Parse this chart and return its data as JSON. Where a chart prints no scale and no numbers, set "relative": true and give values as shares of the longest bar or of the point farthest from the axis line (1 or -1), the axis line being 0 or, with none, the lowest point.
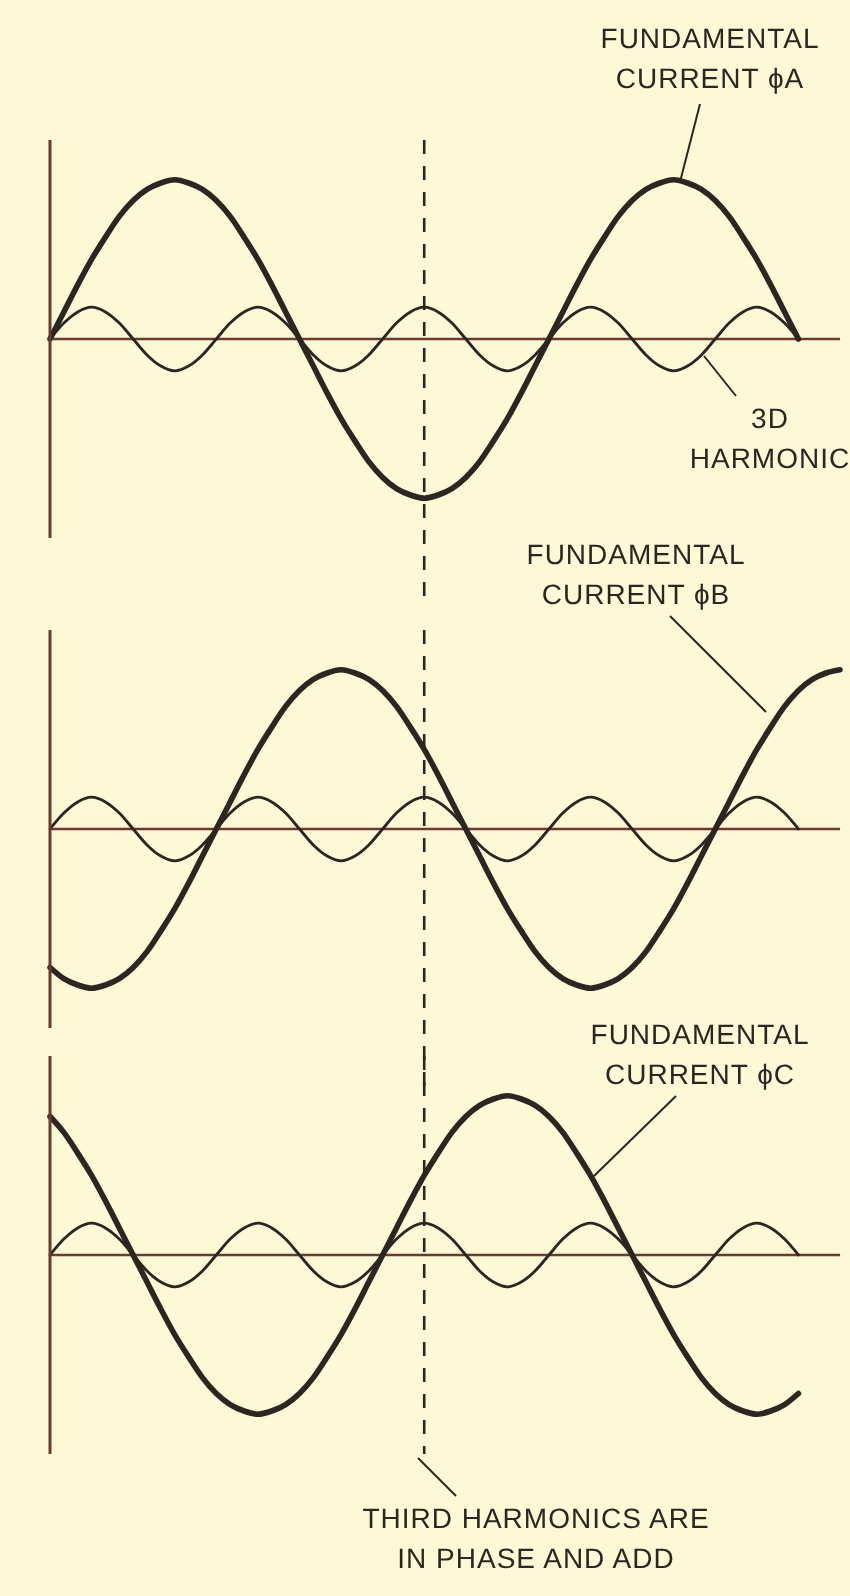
{
  "chart_data": [
    {
      "type": "line",
      "relative": true,
      "line_style": "solid",
      "categories": [
        null,
        null,
        null,
        null,
        null,
        null,
        null,
        null,
        null,
        null,
        null,
        null,
        null,
        null,
        null,
        null,
        null,
        null,
        null,
        null,
        null,
        null,
        null,
        null,
        null,
        null,
        null,
        null,
        null,
        null,
        null,
        null,
        null,
        null,
        null,
        null,
        null,
        null,
        null,
        null,
        null,
        null,
        null,
        null,
        null,
        null,
        null,
        null,
        null,
        null,
        null,
        null,
        null,
        null,
        null,
        null,
        null,
        null
      ],
      "series": [
        {
          "color": "#2b2622",
          "values": [
            0,
            0.17,
            0.34,
            0.5,
            0.64,
            0.77,
            0.87,
            0.94,
            0.98,
            1,
            0.98,
            0.94,
            0.87,
            0.77,
            0.64,
            0.5,
            0.34,
            0.17,
            0,
            -0.17,
            -0.34,
            -0.5,
            -0.64,
            -0.77,
            -0.87,
            -0.94,
            -0.98,
            -1,
            -0.98,
            -0.94,
            -0.87,
            -0.77,
            -0.64,
            -0.5,
            -0.34,
            -0.17,
            0,
            0.17,
            0.34,
            0.5,
            0.64,
            0.77,
            0.87,
            0.94,
            0.98,
            1,
            0.98,
            0.94,
            0.87,
            0.77,
            0.64,
            0.5,
            0.34,
            0.17,
            0,
            null,
            null,
            null
          ]
        },
        {
          "color": "#2b2622",
          "values": [
            0,
            0.1,
            0.17,
            0.2,
            0.17,
            0.1,
            0,
            -0.1,
            -0.17,
            -0.2,
            -0.17,
            -0.1,
            0,
            0.1,
            0.17,
            0.2,
            0.17,
            0.1,
            0,
            -0.1,
            -0.17,
            -0.2,
            -0.17,
            -0.1,
            0,
            0.1,
            0.17,
            0.2,
            0.17,
            0.1,
            0,
            -0.1,
            -0.17,
            -0.2,
            -0.17,
            -0.1,
            0,
            0.1,
            0.17,
            0.2,
            0.17,
            0.1,
            0,
            -0.1,
            -0.17,
            -0.2,
            -0.17,
            -0.1,
            0,
            0.1,
            0.17,
            0.2,
            0.17,
            0.1,
            0,
            null,
            null,
            null
          ]
        }
      ],
      "annotations": [
        "FUNDAMENTAL CURRENT ϕA",
        "3D HARMONIC"
      ],
      "ref_lines": [
        {
          "axis": "y",
          "value": 0,
          "color": "#6b3a30"
        }
      ]
    },
    {
      "type": "line",
      "relative": true,
      "line_style": "solid",
      "categories": [
        null,
        null,
        null,
        null,
        null,
        null,
        null,
        null,
        null,
        null,
        null,
        null,
        null,
        null,
        null,
        null,
        null,
        null,
        null,
        null,
        null,
        null,
        null,
        null,
        null,
        null,
        null,
        null,
        null,
        null,
        null,
        null,
        null,
        null,
        null,
        null,
        null,
        null,
        null,
        null,
        null,
        null,
        null,
        null,
        null,
        null,
        null,
        null,
        null,
        null,
        null,
        null,
        null,
        null,
        null,
        null,
        null,
        null
      ],
      "series": [
        {
          "color": "#2b2622",
          "values": [
            -0.87,
            -0.94,
            -0.98,
            -1,
            -0.98,
            -0.94,
            -0.87,
            -0.77,
            -0.64,
            -0.5,
            -0.34,
            -0.17,
            0,
            0.17,
            0.34,
            0.5,
            0.64,
            0.77,
            0.87,
            0.94,
            0.98,
            1,
            0.98,
            0.94,
            0.87,
            0.77,
            0.64,
            0.5,
            0.34,
            0.17,
            0,
            -0.17,
            -0.34,
            -0.5,
            -0.64,
            -0.77,
            -0.87,
            -0.94,
            -0.98,
            -1,
            -0.98,
            -0.94,
            -0.87,
            -0.77,
            -0.64,
            -0.5,
            -0.34,
            -0.17,
            0,
            0.17,
            0.34,
            0.5,
            0.64,
            0.77,
            0.87,
            0.94,
            0.98,
            1
          ]
        },
        {
          "color": "#2b2622",
          "values": [
            0,
            0.1,
            0.17,
            0.2,
            0.17,
            0.1,
            0,
            -0.1,
            -0.17,
            -0.2,
            -0.17,
            -0.1,
            0,
            0.1,
            0.17,
            0.2,
            0.17,
            0.1,
            0,
            -0.1,
            -0.17,
            -0.2,
            -0.17,
            -0.1,
            0,
            0.1,
            0.17,
            0.2,
            0.17,
            0.1,
            0,
            -0.1,
            -0.17,
            -0.2,
            -0.17,
            -0.1,
            0,
            0.1,
            0.17,
            0.2,
            0.17,
            0.1,
            0,
            -0.1,
            -0.17,
            -0.2,
            -0.17,
            -0.1,
            0,
            0.1,
            0.17,
            0.2,
            0.17,
            0.1,
            0,
            null,
            null,
            null
          ]
        }
      ],
      "annotations": [
        "FUNDAMENTAL CURRENT ϕB"
      ],
      "ref_lines": [
        {
          "axis": "y",
          "value": 0,
          "color": "#6b3a30"
        }
      ]
    },
    {
      "type": "line",
      "relative": true,
      "line_style": "solid",
      "categories": [
        null,
        null,
        null,
        null,
        null,
        null,
        null,
        null,
        null,
        null,
        null,
        null,
        null,
        null,
        null,
        null,
        null,
        null,
        null,
        null,
        null,
        null,
        null,
        null,
        null,
        null,
        null,
        null,
        null,
        null,
        null,
        null,
        null,
        null,
        null,
        null,
        null,
        null,
        null,
        null,
        null,
        null,
        null,
        null,
        null,
        null,
        null,
        null,
        null,
        null,
        null,
        null,
        null,
        null,
        null,
        null,
        null,
        null
      ],
      "series": [
        {
          "color": "#2b2622",
          "values": [
            0.87,
            0.77,
            0.64,
            0.5,
            0.34,
            0.17,
            0,
            -0.17,
            -0.34,
            -0.5,
            -0.64,
            -0.77,
            -0.87,
            -0.94,
            -0.98,
            -1,
            -0.98,
            -0.94,
            -0.87,
            -0.77,
            -0.64,
            -0.5,
            -0.34,
            -0.17,
            0,
            0.17,
            0.34,
            0.5,
            0.64,
            0.77,
            0.87,
            0.94,
            0.98,
            1,
            0.98,
            0.94,
            0.87,
            0.77,
            0.64,
            0.5,
            0.34,
            0.17,
            0,
            -0.17,
            -0.34,
            -0.5,
            -0.64,
            -0.77,
            -0.87,
            -0.94,
            -0.98,
            -1,
            -0.98,
            -0.94,
            -0.87,
            null,
            null,
            null
          ]
        },
        {
          "color": "#2b2622",
          "values": [
            0,
            0.1,
            0.17,
            0.2,
            0.17,
            0.1,
            0,
            -0.1,
            -0.17,
            -0.2,
            -0.17,
            -0.1,
            0,
            0.1,
            0.17,
            0.2,
            0.17,
            0.1,
            0,
            -0.1,
            -0.17,
            -0.2,
            -0.17,
            -0.1,
            0,
            0.1,
            0.17,
            0.2,
            0.17,
            0.1,
            0,
            -0.1,
            -0.17,
            -0.2,
            -0.17,
            -0.1,
            0,
            0.1,
            0.17,
            0.2,
            0.17,
            0.1,
            0,
            -0.1,
            -0.17,
            -0.2,
            -0.17,
            -0.1,
            0,
            0.1,
            0.17,
            0.2,
            0.17,
            0.1,
            0,
            null,
            null,
            null
          ]
        }
      ],
      "annotations": [
        "FUNDAMENTAL CURRENT ϕC",
        "THIRD HARMONICS ARE IN PHASE AND ADD"
      ],
      "ref_lines": [
        {
          "axis": "y",
          "value": 0,
          "color": "#6b3a30"
        }
      ]
    }
  ]
}
